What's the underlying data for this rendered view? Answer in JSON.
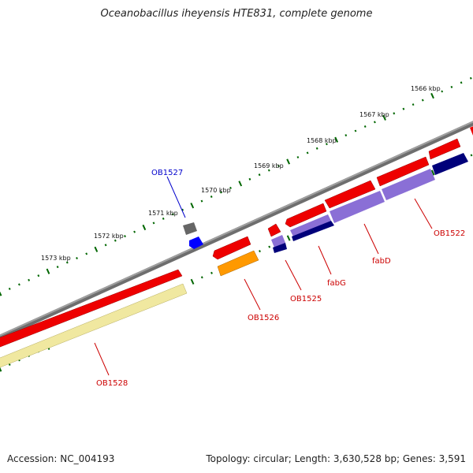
{
  "title": "Oceanobacillus iheyensis HTE831, complete genome",
  "accession": "Accession: NC_004193",
  "topology": "Topology: circular; Length: 3,630,528 bp; Genes: 3,591",
  "colors": {
    "backbone": "#808080",
    "cds_red": "#ff0000",
    "cds_dark_red": "#cc0000",
    "cds_purple": "#8a6fd6",
    "cds_navy": "#00007a",
    "cds_orange": "#ff9900",
    "cds_pale_yellow": "#f0e8a0",
    "cds_gray": "#666666",
    "cds_blue": "#0000ff",
    "tick_green": "#006600",
    "label_red": "#cc0000",
    "label_blue": "#0000cc"
  },
  "kbp_labels": [
    "1573 kbp",
    "1572 kbp",
    "1571 kbp",
    "1570 kbp",
    "1569 kbp",
    "1568 kbp",
    "1567 kbp",
    "1566 kbp"
  ],
  "gene_labels": {
    "ob1527": "OB1527",
    "ob1528": "OB1528",
    "ob1526": "OB1526",
    "ob1525": "OB1525",
    "fabg": "fabG",
    "fabd": "fabD",
    "ob1522": "OB1522"
  }
}
